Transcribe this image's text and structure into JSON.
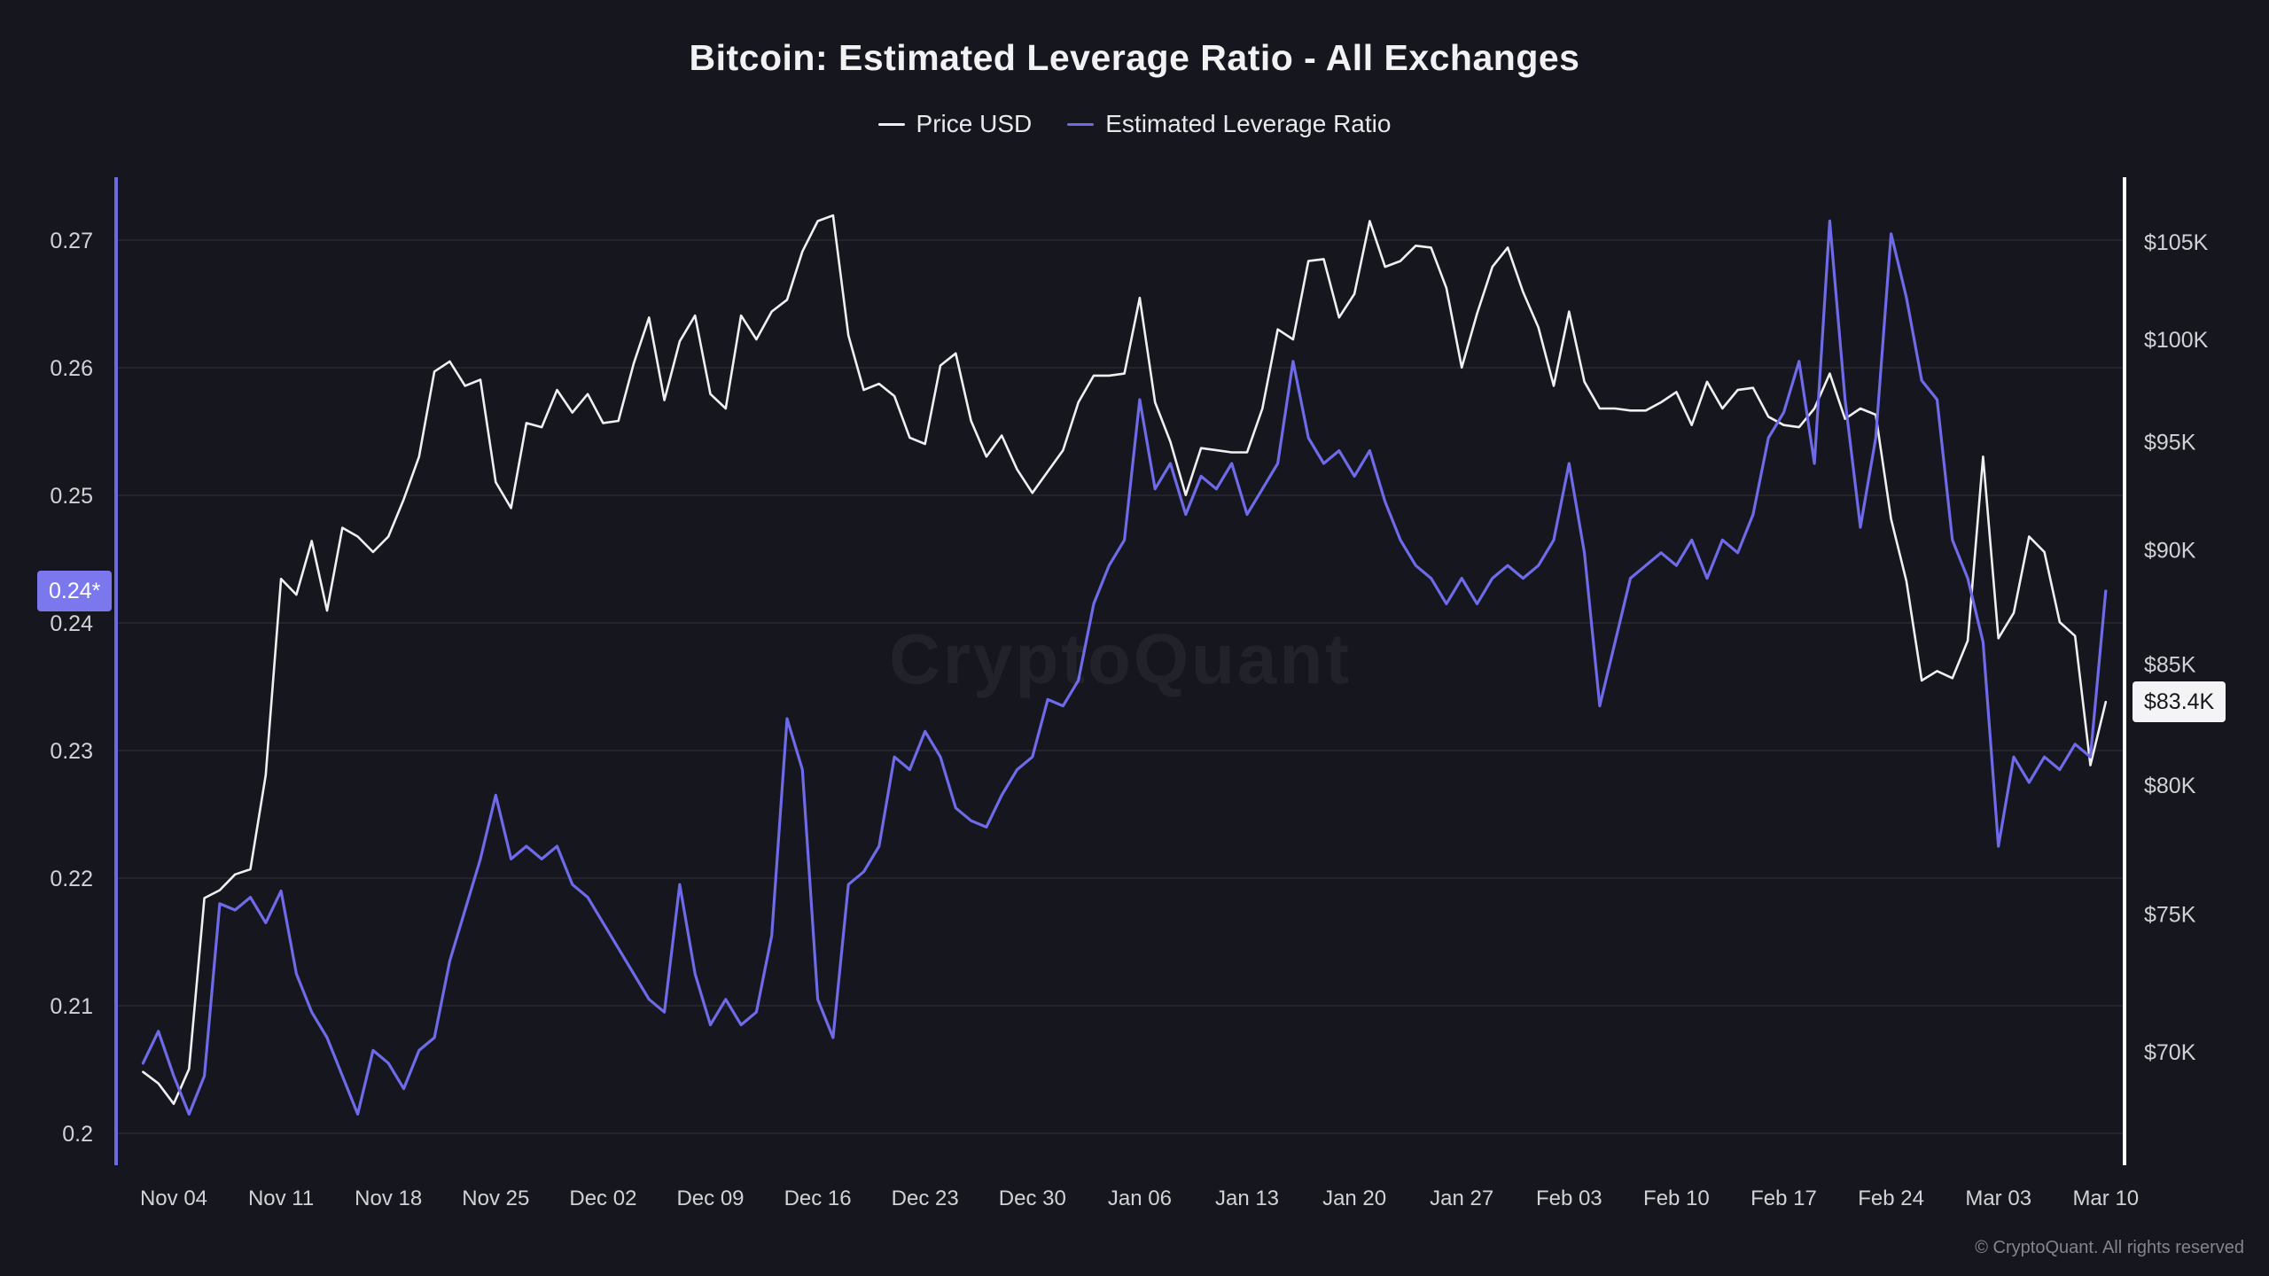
{
  "page": {
    "watermark": "CryptoQuant",
    "footer": "© CryptoQuant. All rights reserved",
    "background": "#16161e"
  },
  "chart_data": {
    "type": "line",
    "title": "Bitcoin: Estimated Leverage Ratio - All Exchanges",
    "legend_position": "top-center",
    "grid": "horizontal",
    "x": {
      "start_date": "Nov 02",
      "end_date": "Mar 10",
      "num_points": 129,
      "first_tick_day_index": 2,
      "days_per_tick": 7,
      "tick_labels": [
        "Nov 04",
        "Nov 11",
        "Nov 18",
        "Nov 25",
        "Dec 02",
        "Dec 09",
        "Dec 16",
        "Dec 23",
        "Dec 30",
        "Jan 06",
        "Jan 13",
        "Jan 20",
        "Jan 27",
        "Feb 03",
        "Feb 10",
        "Feb 17",
        "Feb 24",
        "Mar 03",
        "Mar 10"
      ]
    },
    "left_axis": {
      "series": "Estimated Leverage Ratio",
      "scale": "linear",
      "tick_values": [
        0.2,
        0.21,
        0.22,
        0.23,
        0.24,
        0.25,
        0.26,
        0.27
      ],
      "tick_labels": [
        "0.2",
        "0.21",
        "0.22",
        "0.23",
        "0.24",
        "0.25",
        "0.26",
        "0.27"
      ],
      "current_value": 0.2425,
      "current_value_label": "0.24*",
      "badge_color": "#7b78ee",
      "axis_color": "#6d6ae6"
    },
    "right_axis": {
      "series": "Price USD",
      "scale": "log",
      "unit": "thousand USD",
      "tick_values": [
        70,
        75,
        80,
        85,
        90,
        95,
        100,
        105
      ],
      "tick_labels": [
        "$70K",
        "$75K",
        "$80K",
        "$85K",
        "$90K",
        "$95K",
        "$100K",
        "$105K"
      ],
      "current_value": 83.4,
      "current_value_label": "$83.4K",
      "badge_color": "#f4f4f6",
      "axis_color": "#ffffff"
    },
    "series": [
      {
        "name": "Price USD",
        "axis": "right",
        "color": "#f0f0f2",
        "values": [
          69.3,
          68.9,
          68.2,
          69.4,
          75.6,
          75.9,
          76.5,
          76.7,
          80.4,
          88.7,
          88.0,
          90.4,
          87.3,
          91.0,
          90.6,
          89.9,
          90.6,
          92.3,
          94.3,
          98.4,
          98.9,
          97.7,
          98.0,
          93.1,
          91.9,
          95.9,
          95.7,
          97.5,
          96.4,
          97.3,
          95.9,
          96.0,
          98.8,
          101.1,
          97.0,
          99.9,
          101.2,
          97.3,
          96.6,
          101.2,
          100.0,
          101.4,
          102.0,
          104.5,
          106.1,
          106.4,
          100.2,
          97.5,
          97.8,
          97.2,
          95.2,
          94.9,
          98.7,
          99.3,
          96.0,
          94.3,
          95.3,
          93.7,
          92.6,
          93.6,
          94.6,
          96.9,
          98.2,
          98.2,
          98.3,
          102.1,
          96.9,
          95.0,
          92.5,
          94.7,
          94.6,
          94.5,
          94.5,
          96.6,
          100.5,
          100.0,
          104.0,
          104.1,
          101.1,
          102.3,
          106.1,
          103.7,
          104.0,
          104.8,
          104.7,
          102.6,
          98.6,
          101.3,
          103.7,
          104.7,
          102.4,
          100.6,
          97.7,
          101.4,
          97.9,
          96.6,
          96.6,
          96.5,
          96.5,
          96.9,
          97.4,
          95.8,
          97.9,
          96.6,
          97.5,
          97.6,
          96.2,
          95.8,
          95.7,
          96.6,
          98.3,
          96.1,
          96.6,
          96.3,
          91.4,
          88.6,
          84.3,
          84.7,
          84.4,
          86.0,
          94.3,
          86.1,
          87.2,
          90.6,
          89.9,
          86.8,
          86.2,
          80.8,
          83.4
        ]
      },
      {
        "name": "Estimated Leverage Ratio",
        "axis": "left",
        "color": "#6e6ae8",
        "values": [
          0.2055,
          0.208,
          0.2045,
          0.2015,
          0.2045,
          0.218,
          0.2175,
          0.2185,
          0.2165,
          0.219,
          0.2125,
          0.2095,
          0.2075,
          0.2045,
          0.2015,
          0.2065,
          0.2055,
          0.2035,
          0.2065,
          0.2075,
          0.2135,
          0.2175,
          0.2215,
          0.2265,
          0.2215,
          0.2225,
          0.2215,
          0.2225,
          0.2195,
          0.2185,
          0.2165,
          0.2145,
          0.2125,
          0.2105,
          0.2095,
          0.2195,
          0.2125,
          0.2085,
          0.2105,
          0.2085,
          0.2095,
          0.2155,
          0.2325,
          0.2285,
          0.2105,
          0.2075,
          0.2195,
          0.2205,
          0.2225,
          0.2295,
          0.2285,
          0.2315,
          0.2295,
          0.2255,
          0.2245,
          0.224,
          0.2265,
          0.2285,
          0.2295,
          0.234,
          0.2335,
          0.2355,
          0.2415,
          0.2445,
          0.2465,
          0.2575,
          0.2505,
          0.2525,
          0.2485,
          0.2515,
          0.2505,
          0.2525,
          0.2485,
          0.2505,
          0.2525,
          0.2605,
          0.2545,
          0.2525,
          0.2535,
          0.2515,
          0.2535,
          0.2495,
          0.2465,
          0.2445,
          0.2435,
          0.2415,
          0.2435,
          0.2415,
          0.2435,
          0.2445,
          0.2435,
          0.2445,
          0.2465,
          0.2525,
          0.2455,
          0.2335,
          0.2385,
          0.2435,
          0.2445,
          0.2455,
          0.2445,
          0.2465,
          0.2435,
          0.2465,
          0.2455,
          0.2485,
          0.2545,
          0.2565,
          0.2605,
          0.2525,
          0.2715,
          0.2575,
          0.2475,
          0.2545,
          0.2705,
          0.2655,
          0.259,
          0.2575,
          0.2465,
          0.2435,
          0.2385,
          0.2225,
          0.2295,
          0.2275,
          0.2295,
          0.2285,
          0.2305,
          0.2295,
          0.2425
        ]
      }
    ]
  }
}
